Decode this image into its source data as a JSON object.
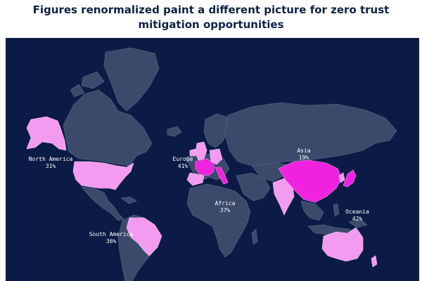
{
  "title": {
    "line1": "Figures renormalized paint a different picture for zero trust",
    "line2": "mitigation opportunities"
  },
  "colors": {
    "background": "#0c1b45",
    "land": "#3b4a6a",
    "highlight_light": "#f39bf0",
    "highlight_strong": "#ef22e0",
    "title": "#0f2244"
  },
  "regions": [
    {
      "id": "north-america",
      "name": "North America",
      "value": "31%"
    },
    {
      "id": "europe",
      "name": "Europe",
      "value": "41%"
    },
    {
      "id": "asia",
      "name": "Asia",
      "value": "19%"
    },
    {
      "id": "africa",
      "name": "Africa",
      "value": "37%"
    },
    {
      "id": "south-america",
      "name": "South America",
      "value": "36%"
    },
    {
      "id": "oceania",
      "name": "Oceania",
      "value": "42%"
    }
  ]
}
